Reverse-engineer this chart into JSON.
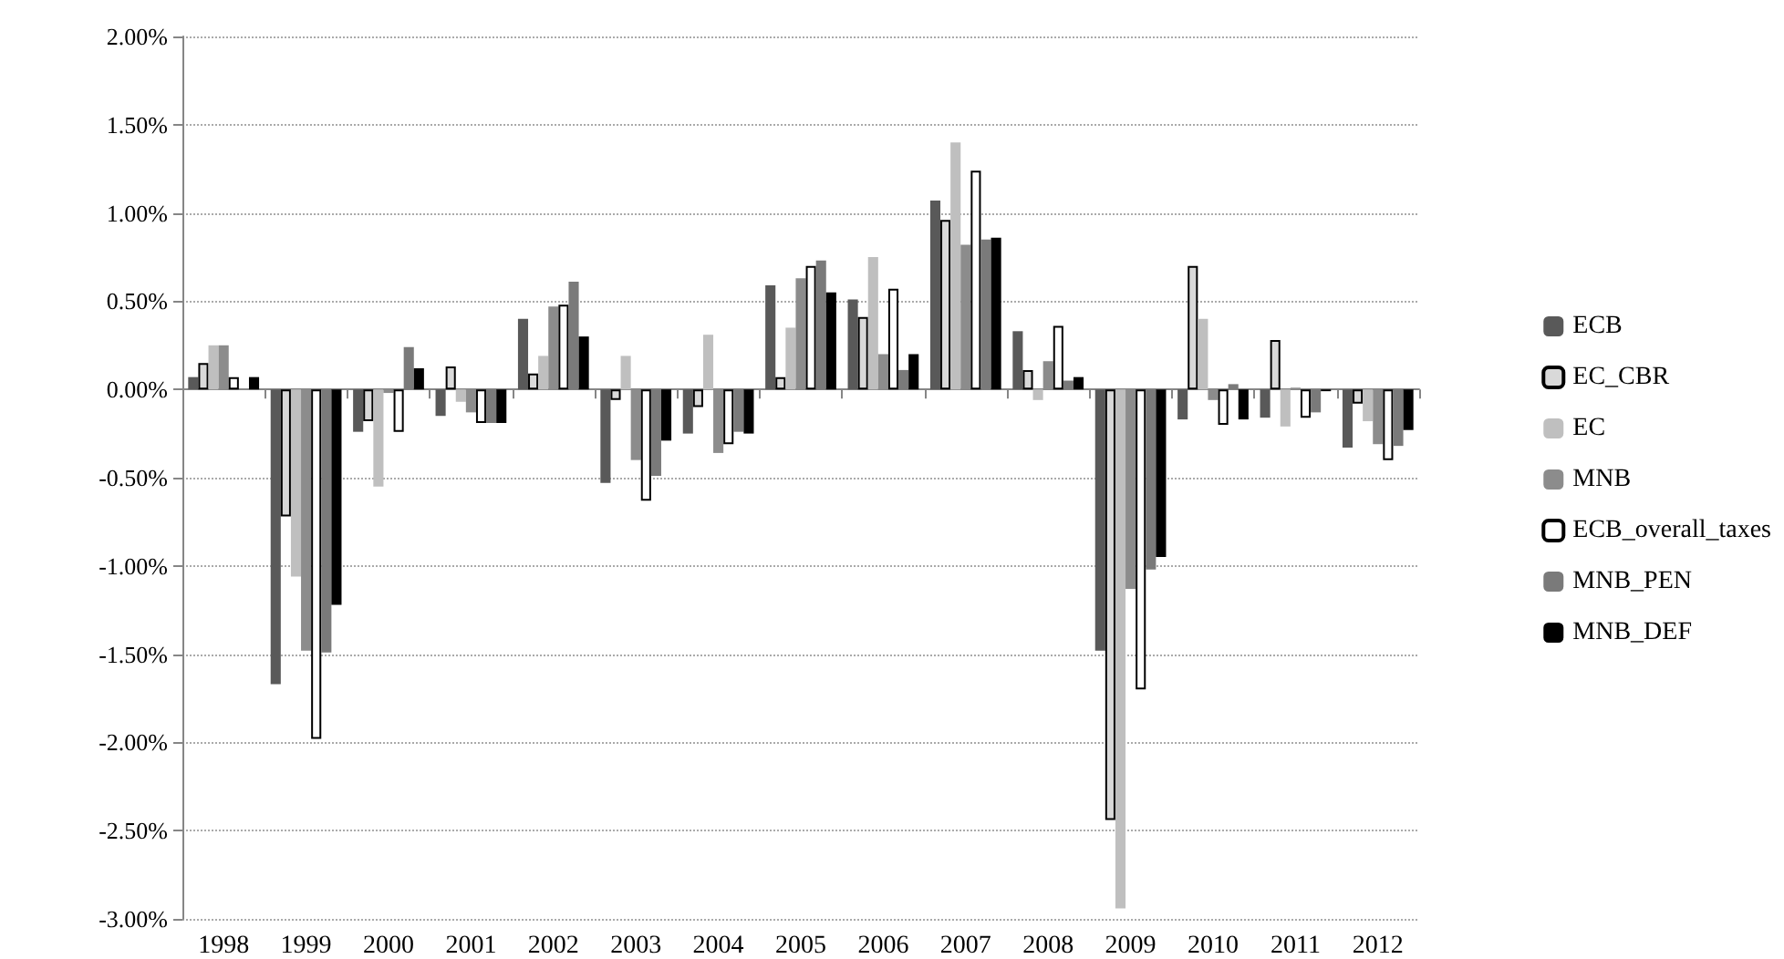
{
  "chart_data": {
    "type": "bar",
    "categories": [
      "1998",
      "1999",
      "2000",
      "2001",
      "2002",
      "2003",
      "2004",
      "2005",
      "2006",
      "2007",
      "2008",
      "2009",
      "2010",
      "2011",
      "2012"
    ],
    "series": [
      {
        "name": "ECB",
        "color": "#595959",
        "values": [
          0.07,
          -1.67,
          -0.24,
          -0.15,
          0.4,
          -0.53,
          -0.25,
          0.59,
          0.51,
          1.07,
          0.33,
          -1.48,
          -0.17,
          -0.16,
          -0.33
        ]
      },
      {
        "name": "EC_CBR",
        "color": "#d9d9d9",
        "values": [
          0.15,
          -0.72,
          -0.18,
          0.13,
          0.09,
          -0.06,
          -0.1,
          0.07,
          0.41,
          0.96,
          0.11,
          -2.44,
          0.7,
          0.28,
          -0.08
        ]
      },
      {
        "name": "EC",
        "color": "#bfbfbf",
        "values": [
          0.25,
          -1.06,
          -0.55,
          -0.07,
          0.19,
          0.19,
          0.31,
          0.35,
          0.75,
          1.4,
          -0.06,
          -2.94,
          0.4,
          -0.21,
          -0.18
        ]
      },
      {
        "name": "MNB",
        "color": "#8c8c8c",
        "values": [
          0.25,
          -1.48,
          -0.02,
          -0.13,
          0.47,
          -0.4,
          -0.36,
          0.63,
          0.2,
          0.82,
          0.16,
          -1.13,
          -0.06,
          0.01,
          -0.31
        ]
      },
      {
        "name": "ECB_overall_taxes",
        "color": "#ffffff",
        "values": [
          0.07,
          -1.98,
          -0.24,
          -0.19,
          0.48,
          -0.63,
          -0.31,
          0.7,
          0.57,
          1.24,
          0.36,
          -1.7,
          -0.2,
          -0.16,
          -0.4
        ]
      },
      {
        "name": "MNB_PEN",
        "color": "#7a7a7a",
        "values": [
          0.0,
          -1.49,
          0.24,
          -0.19,
          0.61,
          -0.49,
          -0.24,
          0.73,
          0.11,
          0.85,
          0.05,
          -1.02,
          0.03,
          -0.13,
          -0.32
        ]
      },
      {
        "name": "MNB_DEF",
        "color": "#000000",
        "values": [
          0.07,
          -1.22,
          0.12,
          -0.19,
          0.3,
          -0.29,
          -0.25,
          0.55,
          0.2,
          0.86,
          0.07,
          -0.95,
          -0.17,
          -0.01,
          -0.23
        ]
      }
    ],
    "ylim": [
      -3,
      2
    ],
    "yticks": [
      {
        "value": -3,
        "label": "-3.00%"
      },
      {
        "value": -2.5,
        "label": "-2.50%"
      },
      {
        "value": -2,
        "label": "-2.00%"
      },
      {
        "value": -1.5,
        "label": "-1.50%"
      },
      {
        "value": -1,
        "label": "-1.00%"
      },
      {
        "value": -0.5,
        "label": "-0.50%"
      },
      {
        "value": 0,
        "label": "0.00%"
      },
      {
        "value": 0.5,
        "label": "0.50%"
      },
      {
        "value": 1,
        "label": "1.00%"
      },
      {
        "value": 1.5,
        "label": "1.50%"
      },
      {
        "value": 2,
        "label": "2.00%"
      }
    ],
    "grid": "y",
    "legend": "right"
  }
}
